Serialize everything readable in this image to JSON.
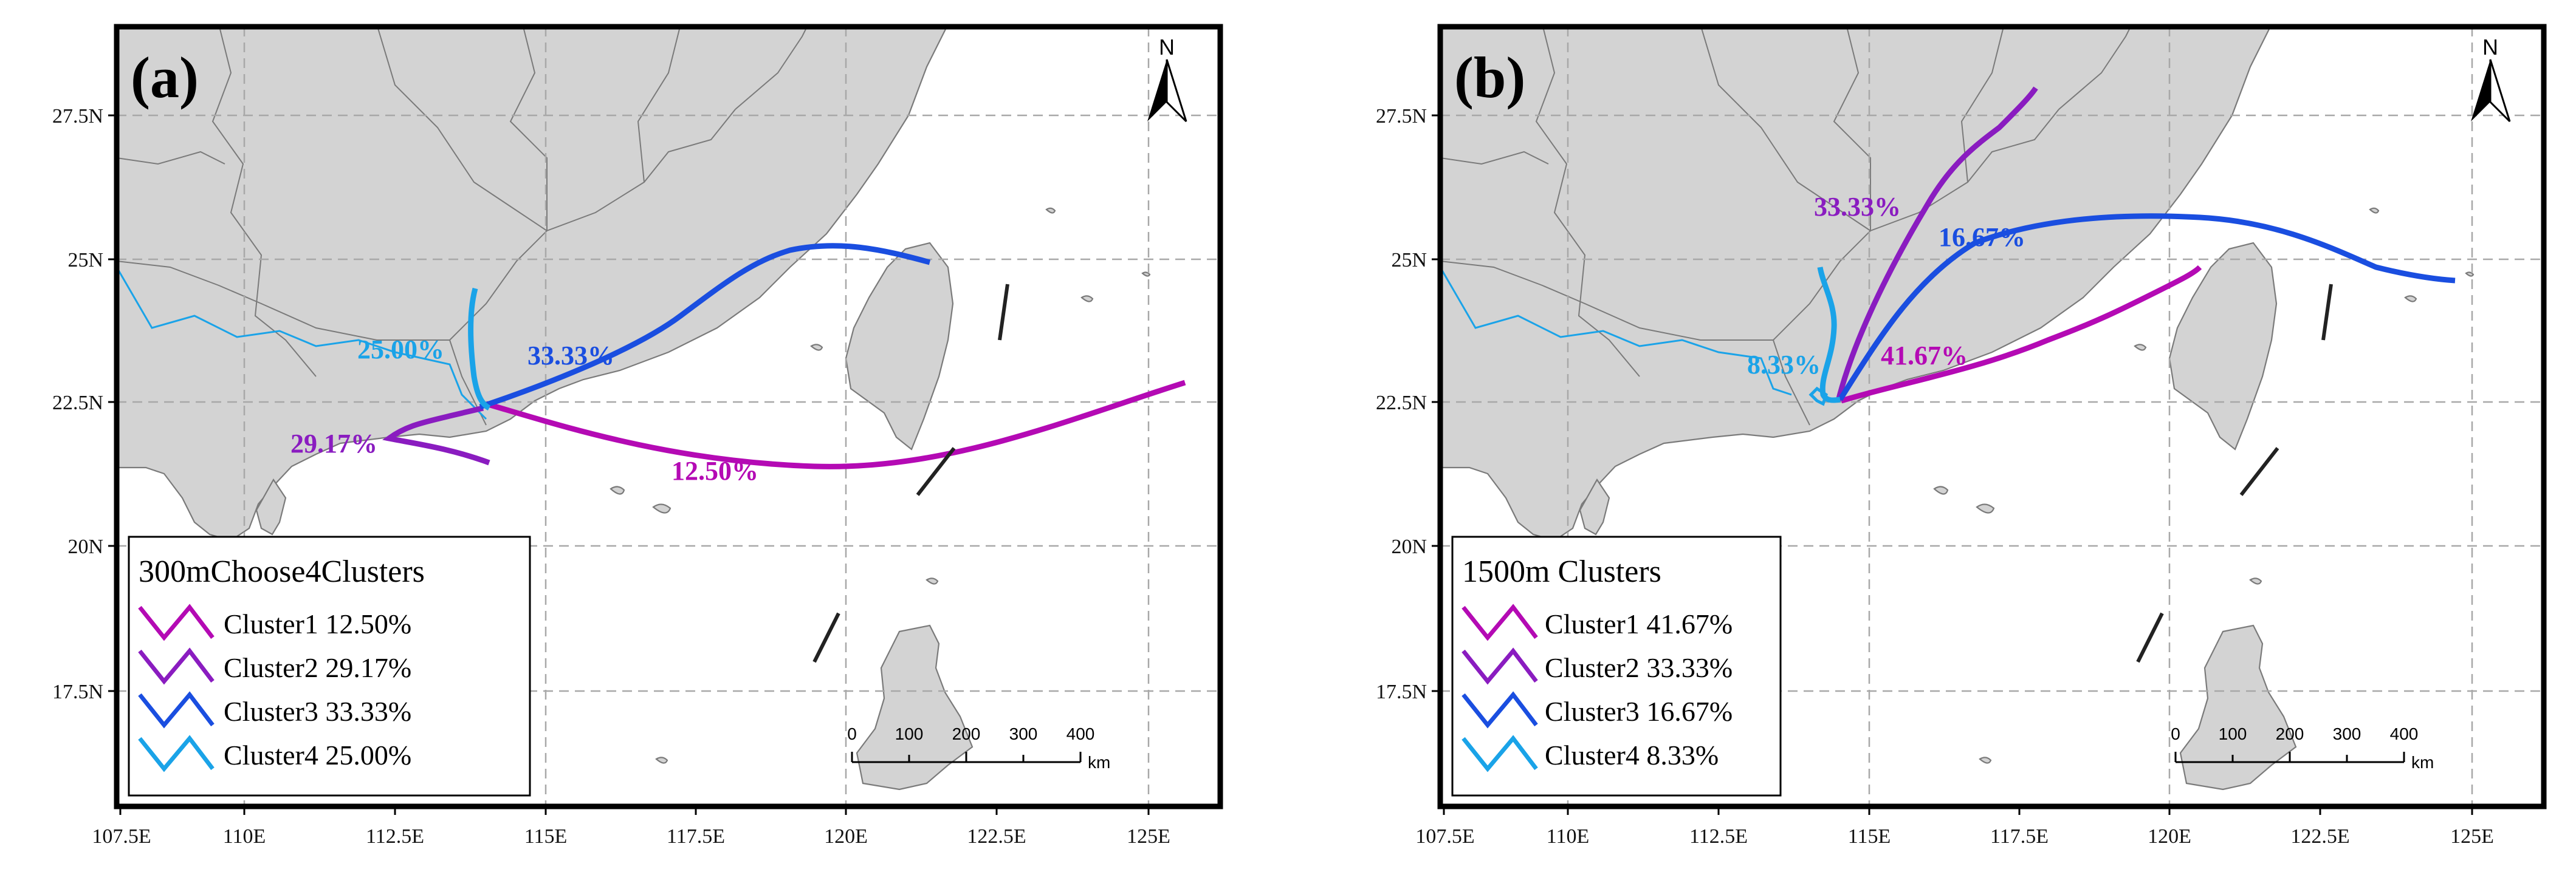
{
  "axis": {
    "x_ticks": [
      "107.5E",
      "110E",
      "112.5E",
      "115E",
      "117.5E",
      "120E",
      "122.5E",
      "125E"
    ],
    "y_ticks": [
      "27.5N",
      "25N",
      "22.5N",
      "20N",
      "17.5N"
    ]
  },
  "colors": {
    "cluster1": "#b40ab4",
    "cluster2": "#8a1cc0",
    "cluster3": "#1a4ee0",
    "cluster4": "#1aa3e8"
  },
  "north_arrow": "N",
  "scale": {
    "ticks": [
      "0",
      "100",
      "200",
      "300",
      "400"
    ],
    "unit": "km"
  },
  "panels": [
    {
      "label": "(a)",
      "legend_title": "300mChoose4Clusters",
      "legend": [
        {
          "name": "Cluster1 12.50%"
        },
        {
          "name": "Cluster2 29.17%"
        },
        {
          "name": "Cluster3 33.33%"
        },
        {
          "name": "Cluster4 25.00%"
        }
      ],
      "map_labels": [
        "12.50%",
        "29.17%",
        "33.33%",
        "25.00%"
      ]
    },
    {
      "label": "(b)",
      "legend_title": "1500m Clusters",
      "legend": [
        {
          "name": "Cluster1 41.67%"
        },
        {
          "name": "Cluster2 33.33%"
        },
        {
          "name": "Cluster3 16.67%"
        },
        {
          "name": "Cluster4 8.33%"
        }
      ],
      "map_labels": [
        "41.67%",
        "33.33%",
        "16.67%",
        "8.33%"
      ]
    }
  ]
}
